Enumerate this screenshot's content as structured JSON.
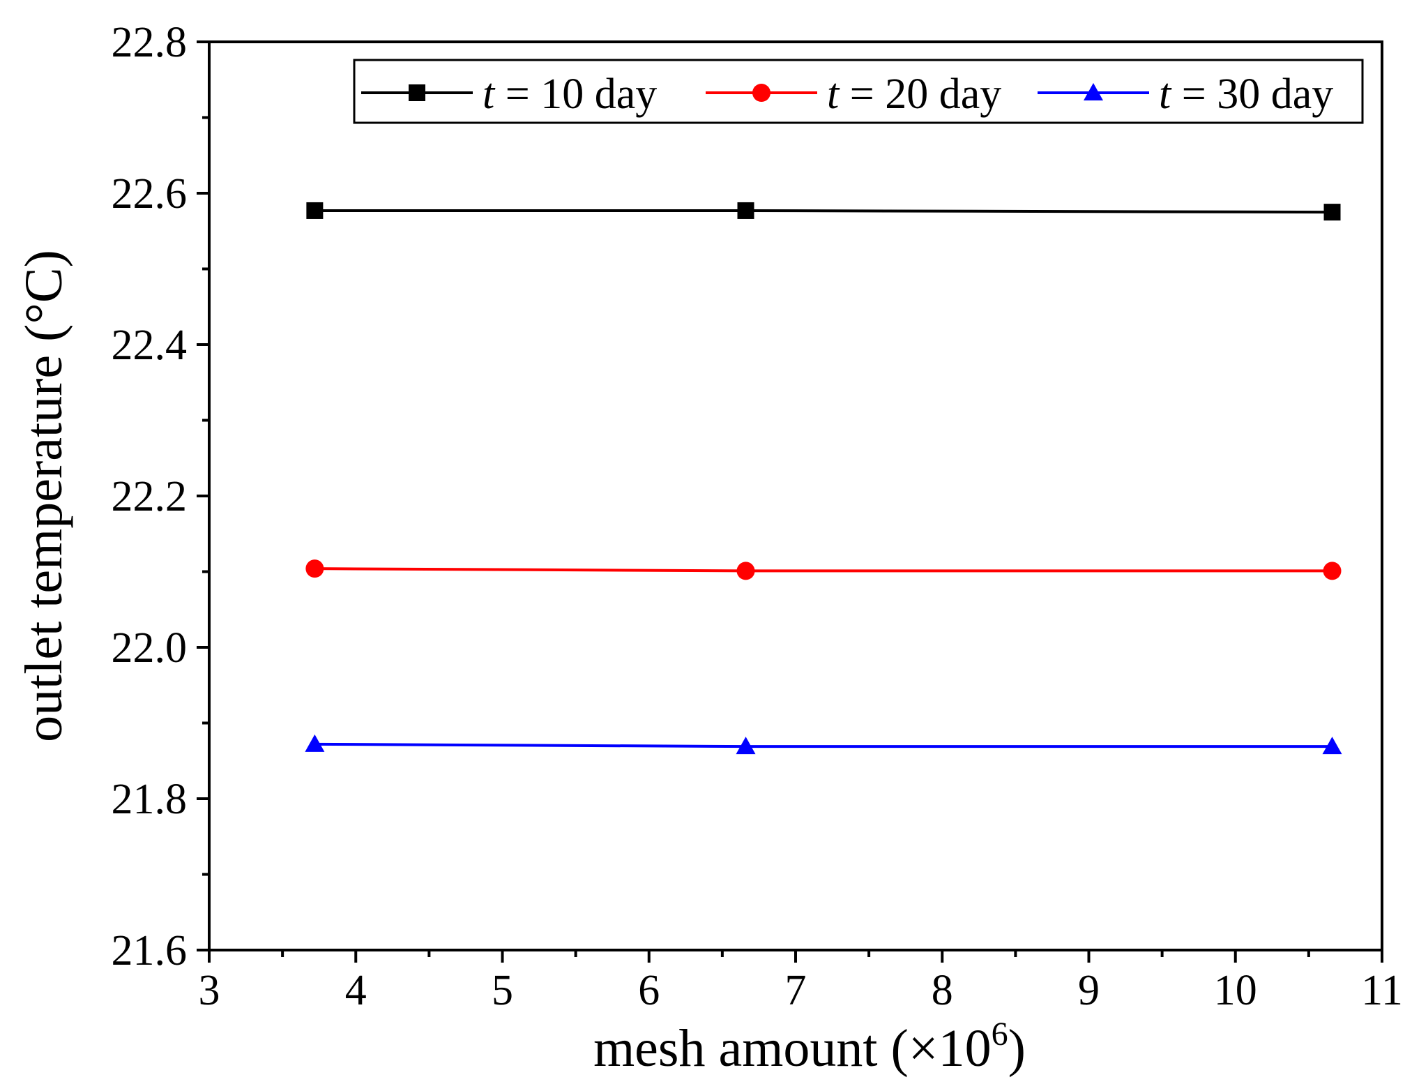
{
  "chart_data": {
    "type": "line",
    "title": "",
    "xlabel": "mesh amount (×10",
    "xlabel_sup": "6",
    "xlabel_close": ")",
    "ylabel": "outlet temperature (°C)",
    "xlim": [
      3,
      11
    ],
    "ylim": [
      21.6,
      22.8
    ],
    "xticks": [
      "3",
      "4",
      "5",
      "6",
      "7",
      "8",
      "9",
      "10",
      "11"
    ],
    "yticks": [
      "21.6",
      "21.8",
      "22.0",
      "22.2",
      "22.4",
      "22.6",
      "22.8"
    ],
    "legend_position": "top-right",
    "x": [
      3.72,
      6.66,
      10.66
    ],
    "series": [
      {
        "name_var": "t",
        "name_rest": " = 10 day",
        "color": "#000000",
        "marker": "square",
        "values": [
          22.577,
          22.577,
          22.575
        ]
      },
      {
        "name_var": "t",
        "name_rest": " = 20 day",
        "color": "#ff0000",
        "marker": "circle",
        "values": [
          22.104,
          22.101,
          22.101
        ]
      },
      {
        "name_var": "t",
        "name_rest": " = 30 day",
        "color": "#0000ff",
        "marker": "triangle",
        "values": [
          21.872,
          21.869,
          21.869
        ]
      }
    ]
  }
}
